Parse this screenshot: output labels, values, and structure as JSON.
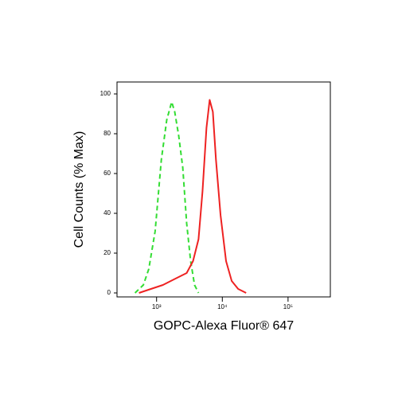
{
  "chart_data": {
    "type": "line",
    "x_label": "GOPC-Alexa Fluor® 647",
    "y_label": "Cell Counts (% Max)",
    "xscale": "log",
    "xlim": [
      250,
      440000
    ],
    "ylim": [
      -2,
      106
    ],
    "xticks": [
      {
        "value": 1000,
        "label": "10³"
      },
      {
        "value": 10000,
        "label": "10⁴"
      },
      {
        "value": 100000,
        "label": "10⁵"
      }
    ],
    "yticks": [
      0,
      20,
      40,
      60,
      80,
      100
    ],
    "series": [
      {
        "color": "#33dd33",
        "dash": true,
        "x": [
          470,
          630,
          760,
          950,
          1180,
          1430,
          1700,
          1890,
          2170,
          2500,
          2870,
          3300,
          3780,
          4350
        ],
        "values": [
          0,
          4,
          12,
          31,
          67,
          87,
          96,
          91,
          79,
          63,
          35,
          16,
          4,
          0
        ]
      },
      {
        "color": "#ee2222",
        "dash": false,
        "x": [
          540,
          820,
          1250,
          1890,
          2870,
          3580,
          4350,
          5000,
          5740,
          6420,
          7170,
          8000,
          9400,
          11400,
          13900,
          17400,
          23000
        ],
        "values": [
          0,
          2,
          4,
          7,
          10,
          16,
          27,
          51,
          83,
          97,
          91,
          67,
          39,
          16,
          6,
          2,
          0
        ]
      }
    ]
  }
}
